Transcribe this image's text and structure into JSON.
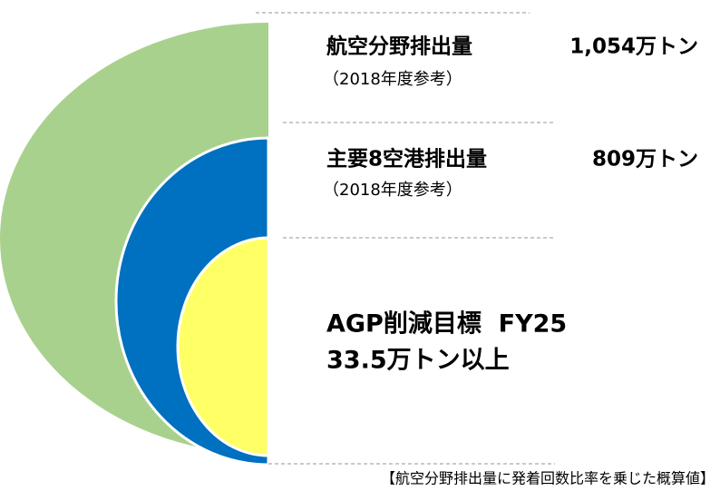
{
  "items": [
    {
      "label": "航空分野排出量",
      "value": "1,054万トン",
      "note": "（2018年度参考）"
    },
    {
      "label": "主要8空港排出量",
      "value": "809万トン",
      "note": "（2018年度参考）"
    },
    {
      "label": "AGP削減目標  FY25",
      "value": "33.5万トン以上"
    }
  ],
  "footnote": "【航空分野排出量に発着回数比率を乗じた概算値】"
}
